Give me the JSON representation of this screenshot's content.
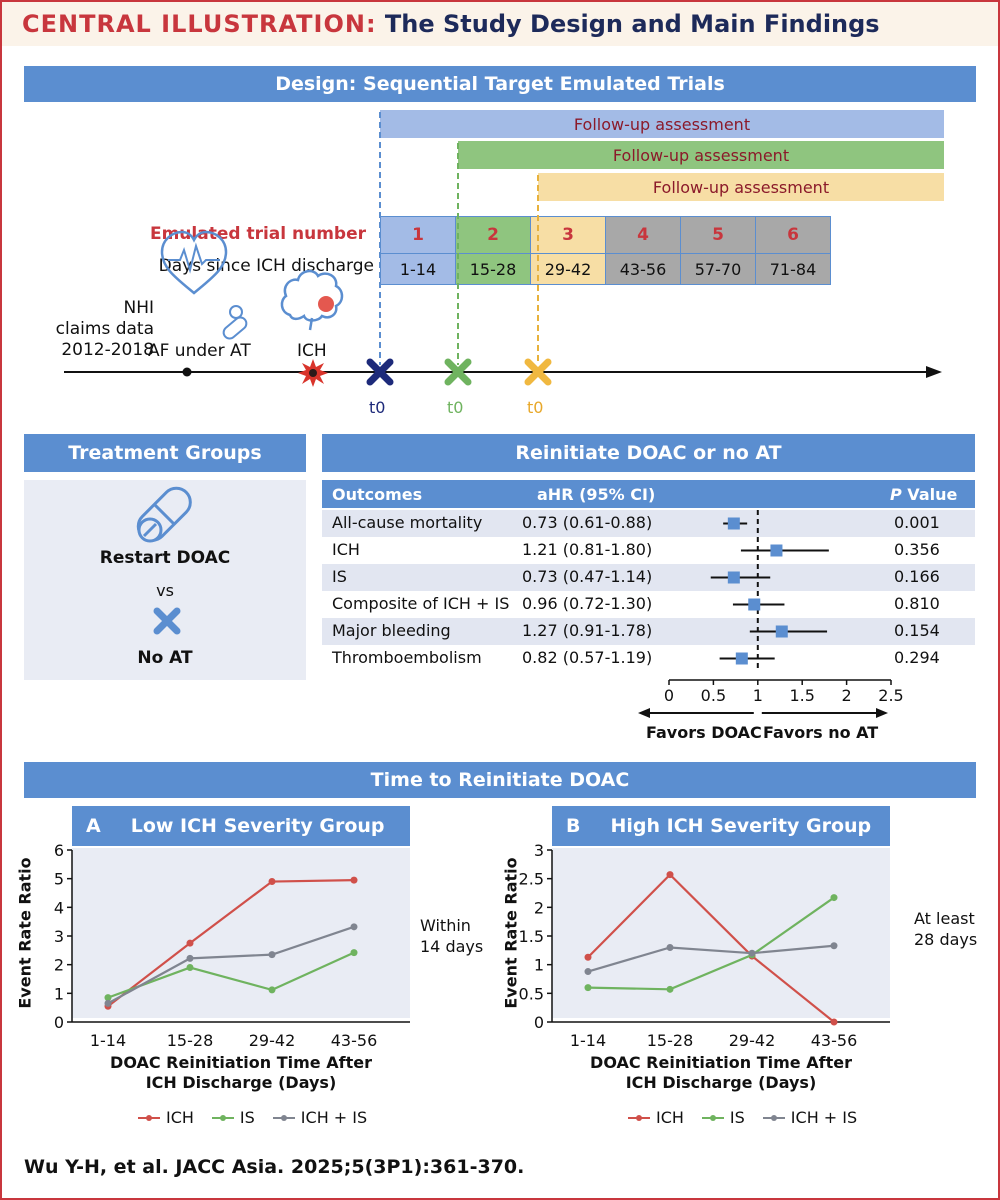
{
  "header": {
    "label": "CENTRAL ILLUSTRATION:",
    "title": "The Study Design and Main Findings"
  },
  "design": {
    "title": "Design: Sequential Target Emulated Trials",
    "followup_label": "Follow-up assessment",
    "trial_number_label": "Emulated trial number",
    "days_label": "Days since ICH discharge",
    "trials": [
      "1",
      "2",
      "3",
      "4",
      "5",
      "6"
    ],
    "days": [
      "1-14",
      "15-28",
      "29-42",
      "43-56",
      "57-70",
      "71-84"
    ],
    "source_label": "NHI\nclaims data\n2012-2018",
    "af_label": "AF under AT",
    "ich_label": "ICH",
    "t0_label": "t0",
    "colors": {
      "blue": "#a3bbe6",
      "green": "#8fc57f",
      "yellow": "#f7dea5",
      "gray": "#a8a8a8"
    }
  },
  "treatment": {
    "title": "Treatment Groups",
    "group1": "Restart DOAC",
    "vs": "vs",
    "group2": "No AT"
  },
  "forest": {
    "title": "Reinitiate DOAC or no AT",
    "col_outcomes": "Outcomes",
    "col_ahr": "aHR (95% CI)",
    "col_p_italic": "P",
    "col_p_rest": " Value",
    "rows": [
      {
        "outcome": "All-cause mortality",
        "ahr_text": "0.73 (0.61-0.88)",
        "hr": 0.73,
        "lo": 0.61,
        "hi": 0.88,
        "p": "0.001"
      },
      {
        "outcome": "ICH",
        "ahr_text": "1.21 (0.81-1.80)",
        "hr": 1.21,
        "lo": 0.81,
        "hi": 1.8,
        "p": "0.356"
      },
      {
        "outcome": "IS",
        "ahr_text": "0.73 (0.47-1.14)",
        "hr": 0.73,
        "lo": 0.47,
        "hi": 1.14,
        "p": "0.166"
      },
      {
        "outcome": "Composite of ICH + IS",
        "ahr_text": "0.96 (0.72-1.30)",
        "hr": 0.96,
        "lo": 0.72,
        "hi": 1.3,
        "p": "0.810"
      },
      {
        "outcome": "Major bleeding",
        "ahr_text": "1.27 (0.91-1.78)",
        "hr": 1.27,
        "lo": 0.91,
        "hi": 1.78,
        "p": "0.154"
      },
      {
        "outcome": "Thromboembolism",
        "ahr_text": "0.82 (0.57-1.19)",
        "hr": 0.82,
        "lo": 0.57,
        "hi": 1.19,
        "p": "0.294"
      }
    ],
    "axis_ticks": [
      "0",
      "0.5",
      "1",
      "1.5",
      "2",
      "2.5"
    ],
    "favors_left": "Favors DOAC",
    "favors_right": "Favors no AT"
  },
  "time_section": {
    "title": "Time to Reinitiate DOAC"
  },
  "chart_data": [
    {
      "type": "line",
      "panel_letter": "A",
      "title": "Low ICH Severity Group",
      "categories": [
        "1-14",
        "15-28",
        "29-42",
        "43-56"
      ],
      "series": [
        {
          "name": "ICH",
          "color": "#d0504a",
          "values": [
            0.55,
            2.75,
            4.9,
            4.95
          ]
        },
        {
          "name": "IS",
          "color": "#6fb35f",
          "values": [
            0.85,
            1.9,
            1.12,
            2.42
          ]
        },
        {
          "name": "ICH + IS",
          "color": "#808590",
          "values": [
            0.65,
            2.22,
            2.35,
            3.32
          ]
        }
      ],
      "ylim": [
        0,
        6
      ],
      "yticks": [
        "0",
        "1",
        "2",
        "3",
        "4",
        "5",
        "6"
      ],
      "ylabel": "Event Rate Ratio",
      "xlabel_line1": "DOAC Reinitiation Time After",
      "xlabel_line2": "ICH Discharge (Days)",
      "annotation": "Within\n14 days",
      "legend": "bottom"
    },
    {
      "type": "line",
      "panel_letter": "B",
      "title": "High ICH Severity Group",
      "categories": [
        "1-14",
        "15-28",
        "29-42",
        "43-56"
      ],
      "series": [
        {
          "name": "ICH",
          "color": "#d0504a",
          "values": [
            1.13,
            2.57,
            1.15,
            0.0
          ]
        },
        {
          "name": "IS",
          "color": "#6fb35f",
          "values": [
            0.6,
            0.57,
            1.17,
            2.17
          ]
        },
        {
          "name": "ICH + IS",
          "color": "#808590",
          "values": [
            0.88,
            1.3,
            1.2,
            1.33
          ]
        }
      ],
      "ylim": [
        0,
        3
      ],
      "yticks": [
        "0",
        "0.5",
        "1",
        "1.5",
        "2",
        "2.5",
        "3"
      ],
      "ylabel": "Event Rate Ratio",
      "xlabel_line1": "DOAC Reinitiation Time After",
      "xlabel_line2": "ICH Discharge (Days)",
      "annotation": "At least\n28 days",
      "legend": "bottom"
    }
  ],
  "citation": "Wu Y-H, et al. JACC Asia. 2025;5(3P1):361-370."
}
